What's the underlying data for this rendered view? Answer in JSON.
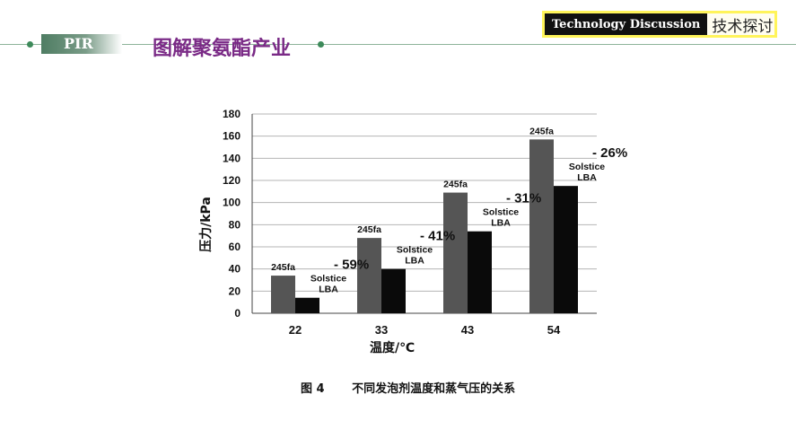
{
  "header": {
    "pir_label": "PIR",
    "title": "图解聚氨酯产业",
    "badge_en": "Technology Discussion",
    "badge_cn": "技术探讨"
  },
  "caption": {
    "figure_no": "图 4",
    "text": "不同发泡剂温度和蒸气压的关系"
  },
  "chart_data": {
    "type": "bar",
    "categories": [
      "22",
      "33",
      "43",
      "54"
    ],
    "series": [
      {
        "name": "245fa",
        "color": "#555555",
        "values": [
          34,
          68,
          109,
          157
        ]
      },
      {
        "name": "Solstice LBA",
        "color": "#0a0a0a",
        "values": [
          14,
          40,
          74,
          115
        ]
      }
    ],
    "annotations": [
      "- 59%",
      "- 41%",
      "- 31%",
      "- 26%"
    ],
    "xlabel": "温度/℃",
    "ylabel": "压力/kPa",
    "ylim": [
      0,
      180
    ],
    "yticks": [
      0,
      20,
      40,
      60,
      80,
      100,
      120,
      140,
      160,
      180
    ],
    "grid": true
  }
}
